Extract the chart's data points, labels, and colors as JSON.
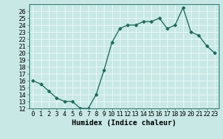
{
  "xlabel": "Humidex (Indice chaleur)",
  "ylabel": "",
  "x": [
    0,
    1,
    2,
    3,
    4,
    5,
    6,
    7,
    8,
    9,
    10,
    11,
    12,
    13,
    14,
    15,
    16,
    17,
    18,
    19,
    20,
    21,
    22,
    23
  ],
  "y": [
    16,
    15.5,
    14.5,
    13.5,
    13,
    13,
    12,
    12,
    14,
    17.5,
    21.5,
    23.5,
    24,
    24,
    24.5,
    24.5,
    25,
    23.5,
    24,
    26.5,
    23,
    22.5,
    21,
    20
  ],
  "line_color": "#1a6b5a",
  "marker": "D",
  "markersize": 2.5,
  "linewidth": 1.0,
  "ylim": [
    12,
    27
  ],
  "xlim": [
    -0.5,
    23.5
  ],
  "yticks": [
    12,
    13,
    14,
    15,
    16,
    17,
    18,
    19,
    20,
    21,
    22,
    23,
    24,
    25,
    26
  ],
  "xticks": [
    0,
    1,
    2,
    3,
    4,
    5,
    6,
    7,
    8,
    9,
    10,
    11,
    12,
    13,
    14,
    15,
    16,
    17,
    18,
    19,
    20,
    21,
    22,
    23
  ],
  "bg_color": "#c8e8e5",
  "grid_color": "#e8f8f7",
  "tick_fontsize": 6.5,
  "label_fontsize": 7.5
}
